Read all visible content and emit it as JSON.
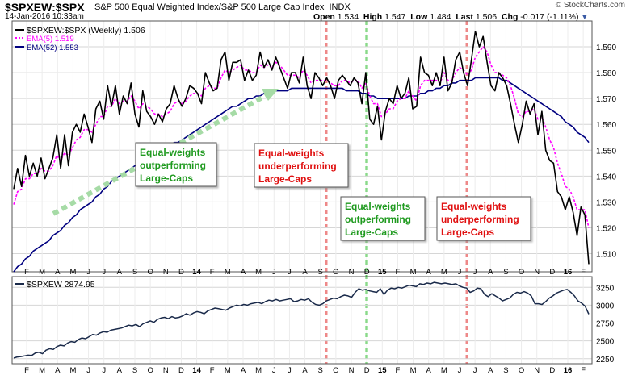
{
  "header": {
    "symbol": "$SPXEW:$SPX",
    "description": "S&P 500 Equal Weighted Index/S&P 500 Large Cap Index",
    "exchange": "INDX",
    "date": "14-Jan-2016 10:33am",
    "watermark": "© StockCharts.com",
    "open_label": "Open",
    "open": "1.534",
    "high_label": "High",
    "high": "1.547",
    "low_label": "Low",
    "low": "1.484",
    "last_label": "Last",
    "last": "1.506",
    "chg_label": "Chg",
    "chg": "-0.017 (-1.11%)",
    "dropdown_icon": "triangle-down-icon"
  },
  "main_legend": {
    "line1": "$SPXEW:$SPX (Weekly) 1.506",
    "line2": "EMA(5) 1.519",
    "line3": "EMA(52) 1.553"
  },
  "lower_legend": "$SPXEW 2874.95",
  "annotations": [
    {
      "lines": [
        "Equal-weights",
        "outperforming",
        "Large-Caps"
      ],
      "color": "#1f9a1f"
    },
    {
      "lines": [
        "Equal-weights",
        "underperforming",
        "Large-Caps"
      ],
      "color": "#e01010"
    },
    {
      "lines": [
        "Equal-weights",
        "outperforming",
        "Large-Caps"
      ],
      "color": "#1f9a1f"
    },
    {
      "lines": [
        "Equal-weights",
        "underperforming",
        "Large-Caps"
      ],
      "color": "#e01010"
    }
  ],
  "x_axis_labels": [
    "F",
    "M",
    "A",
    "M",
    "J",
    "J",
    "A",
    "S",
    "O",
    "N",
    "D",
    "14",
    "F",
    "M",
    "A",
    "M",
    "J",
    "J",
    "A",
    "S",
    "O",
    "N",
    "D",
    "15",
    "F",
    "M",
    "A",
    "M",
    "J",
    "J",
    "A",
    "S",
    "O",
    "N",
    "D",
    "16",
    "F"
  ],
  "chart_data": [
    {
      "type": "line",
      "title": "$SPXEW:$SPX (Weekly)",
      "ylim": [
        1.503,
        1.6
      ],
      "y_ticks": [
        "1.510",
        "1.520",
        "1.530",
        "1.540",
        "1.550",
        "1.560",
        "1.570",
        "1.580",
        "1.590"
      ],
      "series": [
        {
          "name": "$SPXEW:$SPX (Weekly)",
          "color": "#000000",
          "values": [
            1.535,
            1.543,
            1.536,
            1.548,
            1.54,
            1.545,
            1.54,
            1.547,
            1.539,
            1.543,
            1.547,
            1.556,
            1.543,
            1.556,
            1.544,
            1.557,
            1.56,
            1.557,
            1.564,
            1.559,
            1.553,
            1.566,
            1.569,
            1.562,
            1.575,
            1.567,
            1.575,
            1.564,
            1.571,
            1.568,
            1.576,
            1.564,
            1.559,
            1.573,
            1.565,
            1.563,
            1.56,
            1.564,
            1.561,
            1.566,
            1.568,
            1.575,
            1.57,
            1.567,
            1.57,
            1.575,
            1.574,
            1.572,
            1.568,
            1.58,
            1.576,
            1.573,
            1.574,
            1.585,
            1.588,
            1.577,
            1.584,
            1.584,
            1.585,
            1.577,
            1.581,
            1.577,
            1.579,
            1.588,
            1.582,
            1.585,
            1.581,
            1.586,
            1.582,
            1.578,
            1.574,
            1.58,
            1.58,
            1.576,
            1.586,
            1.575,
            1.57,
            1.58,
            1.578,
            1.575,
            1.578,
            1.575,
            1.57,
            1.577,
            1.579,
            1.577,
            1.575,
            1.578,
            1.576,
            1.568,
            1.58,
            1.562,
            1.56,
            1.567,
            1.554,
            1.565,
            1.57,
            1.568,
            1.575,
            1.57,
            1.572,
            1.578,
            1.566,
            1.567,
            1.586,
            1.58,
            1.579,
            1.575,
            1.58,
            1.575,
            1.586,
            1.573,
            1.576,
            1.585,
            1.588,
            1.58,
            1.575,
            1.585,
            1.596,
            1.59,
            1.594,
            1.584,
            1.575,
            1.573,
            1.58,
            1.578,
            1.575,
            1.568,
            1.56,
            1.553,
            1.56,
            1.569,
            1.564,
            1.568,
            1.556,
            1.565,
            1.55,
            1.546,
            1.545,
            1.534,
            1.532,
            1.527,
            1.532,
            1.526,
            1.517,
            1.528,
            1.525,
            1.506
          ]
        },
        {
          "name": "EMA(5)",
          "color": "#ff00ff",
          "values": [
            1.529,
            1.534,
            1.535,
            1.539,
            1.539,
            1.541,
            1.541,
            1.543,
            1.542,
            1.542,
            1.544,
            1.548,
            1.546,
            1.549,
            1.548,
            1.551,
            1.554,
            1.555,
            1.558,
            1.558,
            1.557,
            1.56,
            1.563,
            1.563,
            1.567,
            1.567,
            1.57,
            1.568,
            1.569,
            1.569,
            1.571,
            1.569,
            1.566,
            1.568,
            1.567,
            1.566,
            1.564,
            1.564,
            1.563,
            1.564,
            1.565,
            1.568,
            1.569,
            1.568,
            1.569,
            1.571,
            1.572,
            1.572,
            1.571,
            1.574,
            1.575,
            1.574,
            1.574,
            1.578,
            1.581,
            1.58,
            1.581,
            1.582,
            1.583,
            1.581,
            1.581,
            1.58,
            1.58,
            1.583,
            1.582,
            1.583,
            1.582,
            1.584,
            1.583,
            1.581,
            1.579,
            1.579,
            1.579,
            1.578,
            1.581,
            1.579,
            1.576,
            1.577,
            1.577,
            1.577,
            1.577,
            1.576,
            1.575,
            1.575,
            1.577,
            1.577,
            1.576,
            1.577,
            1.577,
            1.574,
            1.576,
            1.571,
            1.568,
            1.568,
            1.563,
            1.564,
            1.566,
            1.566,
            1.569,
            1.57,
            1.57,
            1.573,
            1.571,
            1.569,
            1.575,
            1.577,
            1.577,
            1.577,
            1.577,
            1.576,
            1.58,
            1.577,
            1.577,
            1.58,
            1.582,
            1.581,
            1.579,
            1.581,
            1.586,
            1.588,
            1.59,
            1.588,
            1.583,
            1.58,
            1.58,
            1.579,
            1.578,
            1.575,
            1.57,
            1.564,
            1.563,
            1.565,
            1.565,
            1.566,
            1.562,
            1.563,
            1.559,
            1.554,
            1.551,
            1.545,
            1.541,
            1.536,
            1.535,
            1.532,
            1.527,
            1.527,
            1.527,
            1.52
          ]
        },
        {
          "name": "EMA(52)",
          "color": "#000080",
          "values": [
            1.503,
            1.505,
            1.506,
            1.508,
            1.509,
            1.511,
            1.512,
            1.513,
            1.514,
            1.515,
            1.517,
            1.518,
            1.519,
            1.521,
            1.522,
            1.524,
            1.525,
            1.527,
            1.528,
            1.529,
            1.53,
            1.532,
            1.533,
            1.535,
            1.536,
            1.538,
            1.539,
            1.54,
            1.541,
            1.542,
            1.543,
            1.544,
            1.545,
            1.546,
            1.547,
            1.548,
            1.548,
            1.549,
            1.55,
            1.551,
            1.552,
            1.553,
            1.553,
            1.554,
            1.555,
            1.556,
            1.557,
            1.558,
            1.559,
            1.56,
            1.561,
            1.562,
            1.563,
            1.564,
            1.565,
            1.566,
            1.567,
            1.567,
            1.568,
            1.569,
            1.57,
            1.57,
            1.571,
            1.571,
            1.572,
            1.572,
            1.573,
            1.573,
            1.573,
            1.573,
            1.573,
            1.574,
            1.574,
            1.574,
            1.574,
            1.574,
            1.574,
            1.574,
            1.574,
            1.574,
            1.574,
            1.574,
            1.574,
            1.574,
            1.574,
            1.573,
            1.573,
            1.573,
            1.573,
            1.572,
            1.572,
            1.571,
            1.571,
            1.57,
            1.57,
            1.57,
            1.57,
            1.57,
            1.57,
            1.57,
            1.57,
            1.571,
            1.571,
            1.571,
            1.572,
            1.572,
            1.573,
            1.573,
            1.574,
            1.574,
            1.575,
            1.575,
            1.576,
            1.576,
            1.577,
            1.577,
            1.577,
            1.577,
            1.578,
            1.578,
            1.578,
            1.578,
            1.578,
            1.578,
            1.578,
            1.577,
            1.577,
            1.576,
            1.575,
            1.574,
            1.573,
            1.572,
            1.571,
            1.57,
            1.569,
            1.568,
            1.567,
            1.566,
            1.565,
            1.564,
            1.563,
            1.561,
            1.56,
            1.559,
            1.557,
            1.556,
            1.555,
            1.553
          ]
        }
      ]
    },
    {
      "type": "line",
      "title": "$SPXEW",
      "ylim": [
        2180,
        3400
      ],
      "y_ticks": [
        "2250",
        "2500",
        "2750",
        "3000",
        "3250"
      ],
      "series": [
        {
          "name": "$SPXEW",
          "color": "#1a2a4a",
          "values": [
            2260,
            2275,
            2280,
            2290,
            2300,
            2295,
            2330,
            2340,
            2320,
            2370,
            2390,
            2380,
            2420,
            2440,
            2430,
            2470,
            2490,
            2480,
            2520,
            2540,
            2530,
            2560,
            2590,
            2580,
            2610,
            2630,
            2620,
            2650,
            2660,
            2670,
            2680,
            2700,
            2720,
            2710,
            2730,
            2700,
            2740,
            2760,
            2780,
            2760,
            2800,
            2820,
            2830,
            2810,
            2840,
            2820,
            2830,
            2850,
            2880,
            2860,
            2890,
            2910,
            2900,
            2880,
            2920,
            2940,
            2960,
            2950,
            2940,
            2930,
            2960,
            2980,
            3000,
            2990,
            3010,
            3000,
            3020,
            3030,
            3040,
            3020,
            3050,
            3070,
            3060,
            3080,
            3060,
            3070,
            3080,
            3090,
            3050,
            3060,
            3080,
            3070,
            3090,
            3040,
            3010,
            3000,
            3020,
            3060,
            3080,
            3100,
            3090,
            3120,
            3140,
            3130,
            3110,
            3180,
            3230,
            3210,
            3220,
            3200,
            3190,
            3180,
            3230,
            3150,
            3210,
            3240,
            3230,
            3250,
            3240,
            3260,
            3280,
            3270,
            3260,
            3300,
            3290,
            3310,
            3300,
            3320,
            3310,
            3300,
            3310,
            3300,
            3290,
            3300,
            3270,
            3250,
            3240,
            3180,
            3200,
            3240,
            3230,
            3150,
            3120,
            3160,
            3130,
            3100,
            3060,
            3080,
            3100,
            3150,
            3180,
            3170,
            3190,
            3170,
            3130,
            3020,
            3020,
            3010,
            3050,
            3100,
            3130,
            3170,
            3190,
            3210,
            3220,
            3180,
            3130,
            3060,
            3030,
            2985,
            2875
          ]
        }
      ]
    }
  ]
}
